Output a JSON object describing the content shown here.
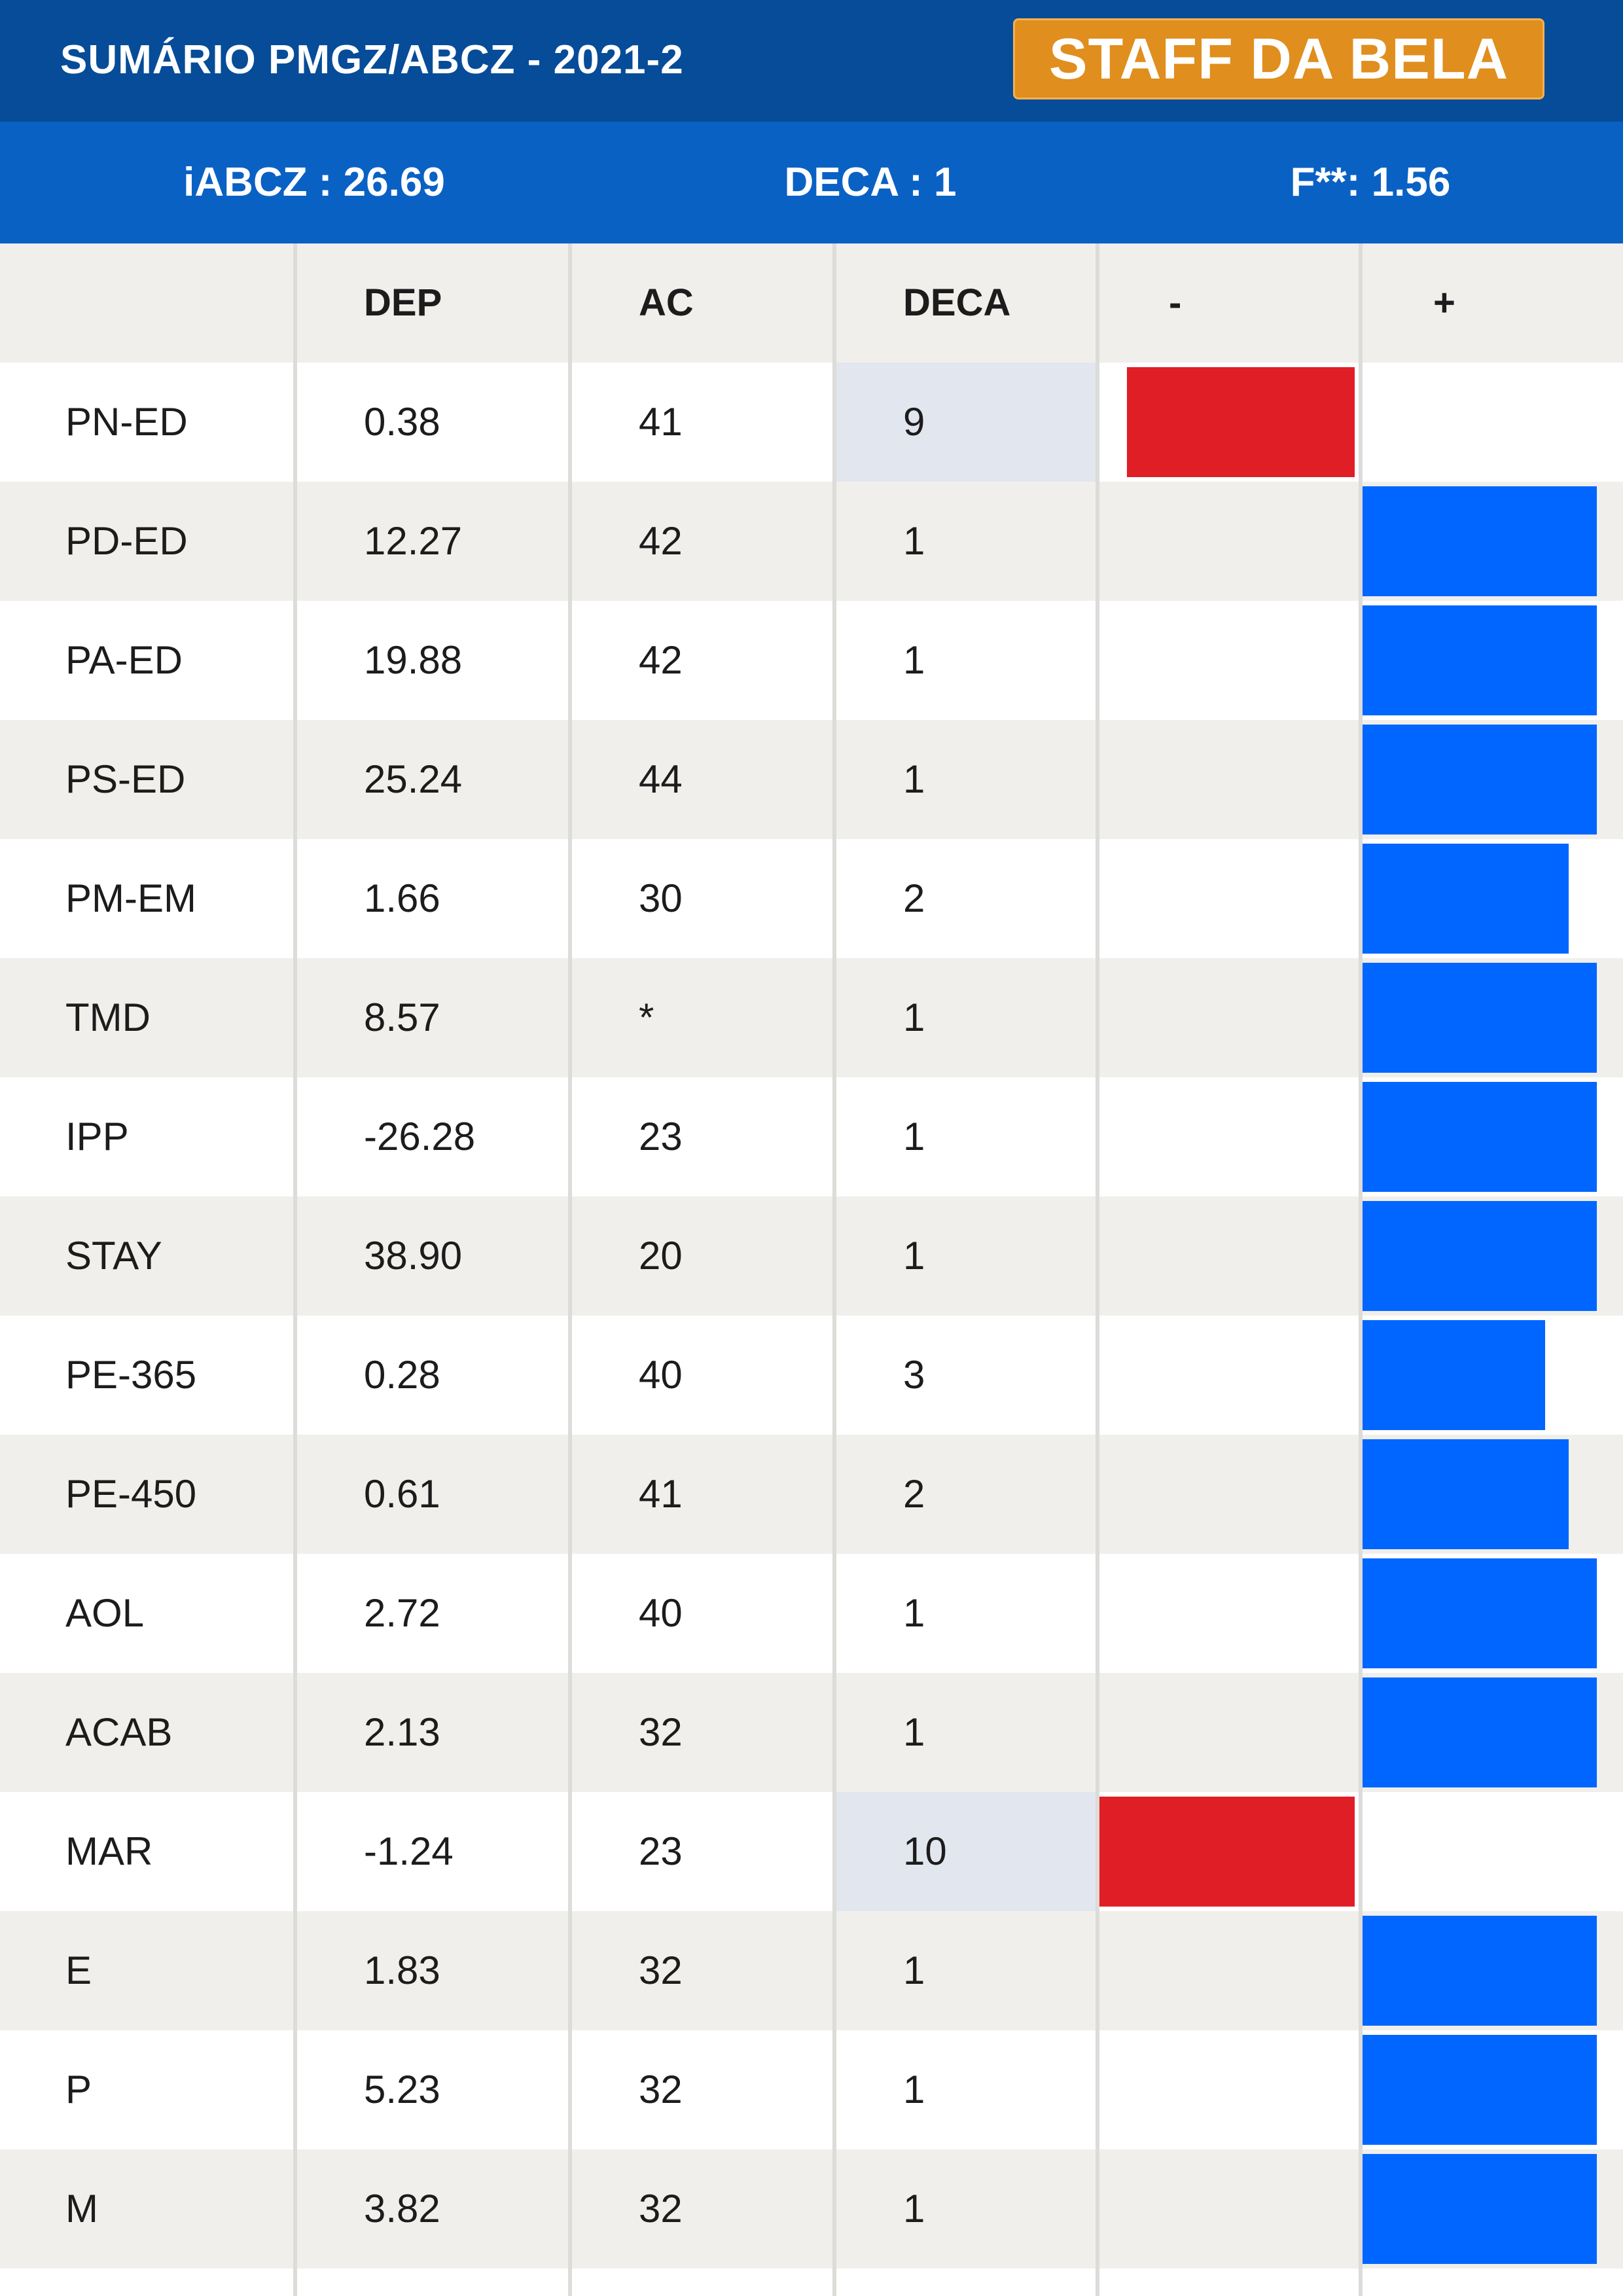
{
  "header": {
    "title": "SUMÁRIO PMGZ/ABCZ - 2021-2",
    "badge": "STAFF DA BELA"
  },
  "summary": {
    "iabcz": "iABCZ : 26.69",
    "deca": "DECA : 1",
    "f": "F**: 1.56"
  },
  "table": {
    "columns": [
      "",
      "DEP",
      "AC",
      "DECA",
      "-",
      "+"
    ],
    "rows": [
      {
        "metric": "PN-ED",
        "dep": "0.38",
        "ac": "41",
        "deca": "9",
        "side": "neg",
        "level": 0.88
      },
      {
        "metric": "PD-ED",
        "dep": "12.27",
        "ac": "42",
        "deca": "1",
        "side": "pos",
        "level": 1.0
      },
      {
        "metric": "PA-ED",
        "dep": "19.88",
        "ac": "42",
        "deca": "1",
        "side": "pos",
        "level": 1.0
      },
      {
        "metric": "PS-ED",
        "dep": "25.24",
        "ac": "44",
        "deca": "1",
        "side": "pos",
        "level": 1.0
      },
      {
        "metric": "PM-EM",
        "dep": "1.66",
        "ac": "30",
        "deca": "2",
        "side": "pos",
        "level": 0.88
      },
      {
        "metric": "TMD",
        "dep": "8.57",
        "ac": "*",
        "deca": "1",
        "side": "pos",
        "level": 1.0
      },
      {
        "metric": "IPP",
        "dep": "-26.28",
        "ac": "23",
        "deca": "1",
        "side": "pos",
        "level": 1.0
      },
      {
        "metric": "STAY",
        "dep": "38.90",
        "ac": "20",
        "deca": "1",
        "side": "pos",
        "level": 1.0
      },
      {
        "metric": "PE-365",
        "dep": "0.28",
        "ac": "40",
        "deca": "3",
        "side": "pos",
        "level": 0.78
      },
      {
        "metric": "PE-450",
        "dep": "0.61",
        "ac": "41",
        "deca": "2",
        "side": "pos",
        "level": 0.88
      },
      {
        "metric": "AOL",
        "dep": "2.72",
        "ac": "40",
        "deca": "1",
        "side": "pos",
        "level": 1.0
      },
      {
        "metric": "ACAB",
        "dep": "2.13",
        "ac": "32",
        "deca": "1",
        "side": "pos",
        "level": 1.0
      },
      {
        "metric": "MAR",
        "dep": "-1.24",
        "ac": "23",
        "deca": "10",
        "side": "neg",
        "level": 1.0
      },
      {
        "metric": "E",
        "dep": "1.83",
        "ac": "32",
        "deca": "1",
        "side": "pos",
        "level": 1.0
      },
      {
        "metric": "P",
        "dep": "5.23",
        "ac": "32",
        "deca": "1",
        "side": "pos",
        "level": 1.0
      },
      {
        "metric": "M",
        "dep": "3.82",
        "ac": "32",
        "deca": "1",
        "side": "pos",
        "level": 1.0
      }
    ]
  },
  "colors": {
    "header_bg": "#064c98",
    "summary_bg": "#0a61c4",
    "badge_bg": "#e08e1e",
    "positive_bar": "#0066ff",
    "negative_bar": "#e01e26",
    "deca_highlight": "#e2e6ee",
    "shaded_row": "#f0efeb"
  }
}
